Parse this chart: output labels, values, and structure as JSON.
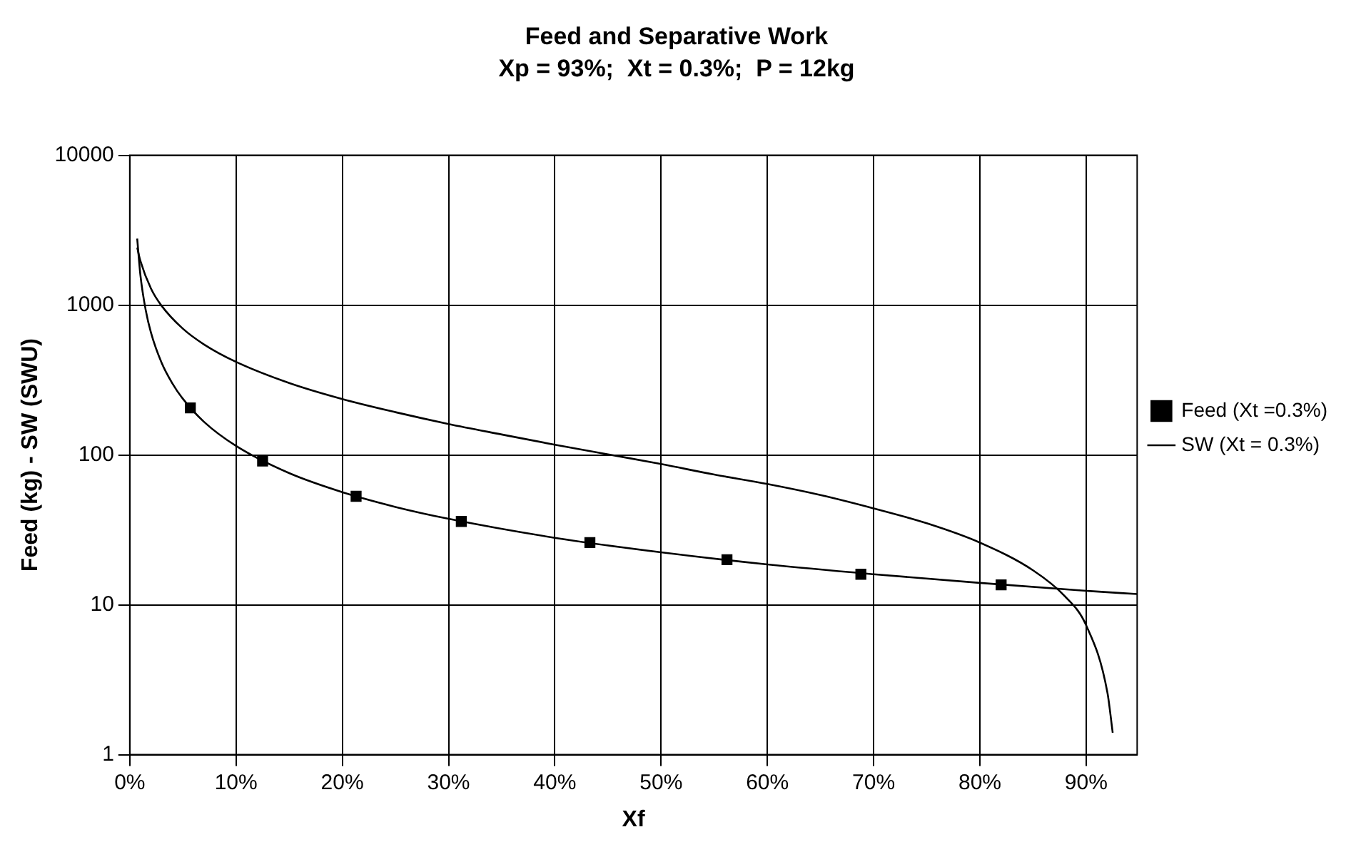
{
  "chart_data": {
    "type": "line",
    "title": "Feed and Separative Work",
    "subtitle": "Xp = 93%;  Xt = 0.3%;  P = 12kg",
    "xlabel": "Xf",
    "ylabel": "Feed (kg) - SW (SWU)",
    "xlim": [
      0,
      94.8
    ],
    "xticks": [
      {
        "value": 0,
        "label": "0%"
      },
      {
        "value": 10,
        "label": "10%"
      },
      {
        "value": 20,
        "label": "20%"
      },
      {
        "value": 30,
        "label": "30%"
      },
      {
        "value": 40,
        "label": "40%"
      },
      {
        "value": 50,
        "label": "50%"
      },
      {
        "value": 60,
        "label": "60%"
      },
      {
        "value": 70,
        "label": "70%"
      },
      {
        "value": 80,
        "label": "80%"
      },
      {
        "value": 90,
        "label": "90%"
      }
    ],
    "ylim": [
      1,
      10000
    ],
    "yticks": [
      1,
      10,
      100,
      1000,
      10000
    ],
    "log": "y",
    "grid": true,
    "legend": "right",
    "series": [
      {
        "name": "Feed (Xt =0.3%)",
        "type": "scatter",
        "color": "#000000",
        "marker": "square",
        "x": [
          5.7,
          12.5,
          21.3,
          31.2,
          43.3,
          56.2,
          68.8,
          82
        ],
        "values": [
          206,
          91,
          53,
          36,
          26,
          20,
          16,
          13.6
        ]
      },
      {
        "color": "#000000",
        "marker": "none",
        "x": [
          0.7,
          1,
          1.5,
          2,
          3,
          4,
          5,
          7,
          10,
          15,
          20,
          25,
          30,
          40,
          50,
          60,
          70,
          80,
          90,
          94.8
        ],
        "values": [
          2781,
          1589,
          927,
          654,
          412,
          301,
          237,
          166,
          115,
          75.7,
          56.5,
          45,
          37.5,
          28,
          22.4,
          18.6,
          16,
          14,
          12.4,
          11.8
        ]
      },
      {
        "name": "SW (Xt = 0.3%)",
        "color": "#000000",
        "marker": "none",
        "x": [
          0.7,
          1,
          2,
          3,
          5,
          7,
          10,
          15,
          20,
          25,
          30,
          35,
          40,
          45,
          50,
          55,
          60,
          65,
          70,
          75,
          80,
          85,
          88,
          90,
          92,
          92.5
        ],
        "values": [
          2419,
          1973,
          1289,
          989,
          696,
          546,
          418,
          302,
          236,
          193,
          161,
          137,
          117,
          101,
          87,
          74,
          64,
          54,
          44,
          35,
          26,
          17,
          11.4,
          7.3,
          2.6,
          1.4
        ]
      }
    ]
  }
}
